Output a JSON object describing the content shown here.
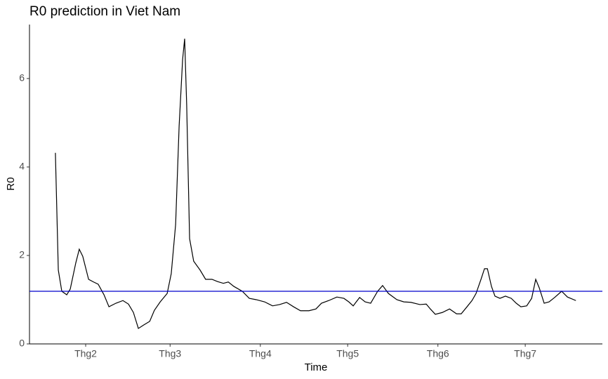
{
  "chart_data": {
    "type": "line",
    "title": "R0 prediction in Viet Nam",
    "x_label": "Time",
    "y_label": "R0",
    "x": [
      21.6,
      22.6,
      23.8,
      25.5,
      26.7,
      28.6,
      29.8,
      31,
      33,
      34.7,
      36.3,
      38.3,
      40,
      42.4,
      44.8,
      46.7,
      48.4,
      50.1,
      52,
      54,
      55.6,
      57.6,
      60,
      61.4,
      62.9,
      64.1,
      65.3,
      66,
      66.7,
      67.7,
      69.1,
      71.3,
      73.2,
      75.4,
      77.3,
      79.3,
      81,
      82.9,
      85.8,
      88.2,
      90.6,
      93.5,
      96.2,
      98.6,
      101,
      103.4,
      105.8,
      108.7,
      111.1,
      113,
      115.5,
      118.3,
      120.7,
      122.4,
      123.9,
      126.1,
      128,
      129.9,
      132.3,
      134,
      136,
      138.9,
      141.3,
      143.7,
      146.8,
      149,
      150.4,
      152.1,
      154.5,
      157,
      159.4,
      161,
      163,
      164.7,
      166.1,
      167.8,
      169,
      170,
      171.4,
      172.6,
      174.3,
      176.2,
      178.2,
      179.9,
      181.5,
      183.5,
      185.2,
      186.6,
      187.8,
      189.5,
      191.2,
      193.1,
      195.5,
      197.5,
      200.4
    ],
    "series": [
      {
        "name": "R0",
        "color": "#000000",
        "values": [
          4.32,
          1.67,
          1.19,
          1.11,
          1.24,
          1.83,
          2.14,
          1.98,
          1.46,
          1.4,
          1.35,
          1.11,
          0.84,
          0.92,
          0.98,
          0.9,
          0.71,
          0.35,
          0.43,
          0.51,
          0.76,
          0.95,
          1.14,
          1.59,
          2.7,
          4.92,
          6.43,
          6.9,
          5.4,
          2.38,
          1.87,
          1.67,
          1.46,
          1.46,
          1.41,
          1.37,
          1.4,
          1.3,
          1.19,
          1.03,
          1.0,
          0.95,
          0.86,
          0.89,
          0.94,
          0.84,
          0.75,
          0.75,
          0.79,
          0.92,
          0.98,
          1.06,
          1.03,
          0.95,
          0.86,
          1.05,
          0.95,
          0.92,
          1.19,
          1.32,
          1.14,
          1.0,
          0.95,
          0.94,
          0.89,
          0.9,
          0.79,
          0.67,
          0.71,
          0.79,
          0.68,
          0.68,
          0.84,
          0.98,
          1.14,
          1.46,
          1.7,
          1.7,
          1.3,
          1.08,
          1.03,
          1.08,
          1.03,
          0.92,
          0.84,
          0.86,
          1.03,
          1.46,
          1.27,
          0.92,
          0.95,
          1.05,
          1.19,
          1.06,
          0.98
        ]
      }
    ],
    "reference_line": {
      "value": 1.19,
      "color": "#0000cc"
    },
    "xlim": [
      12.7,
      209.5
    ],
    "xticks": [
      {
        "value": 32,
        "label": "Thg2"
      },
      {
        "value": 61,
        "label": "Thg3"
      },
      {
        "value": 92,
        "label": "Thg4"
      },
      {
        "value": 122,
        "label": "Thg5"
      },
      {
        "value": 153,
        "label": "Thg6"
      },
      {
        "value": 183,
        "label": "Thg7"
      }
    ],
    "ylim": [
      0,
      7.22
    ],
    "yticks": [
      0,
      2,
      4,
      6
    ],
    "grid": false
  }
}
